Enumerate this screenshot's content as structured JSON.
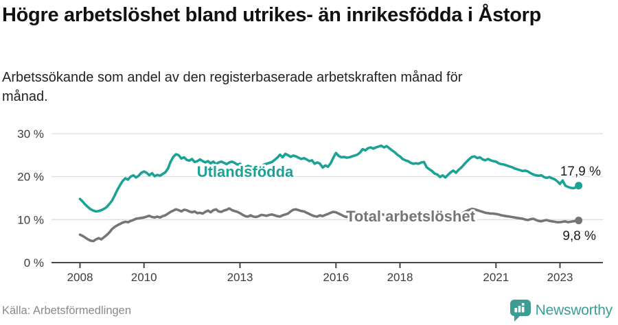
{
  "header": {
    "title": "Högre arbetslöshet bland utrikes- än inrikesfödda i Åstorp",
    "subtitle": "Arbetssökande som andel av den registerbaserade arbetskraften månad för månad."
  },
  "footer": {
    "source": "Källa: Arbetsförmedlingen",
    "brand": "Newsworthy"
  },
  "colors": {
    "series_foreign_born": "#1AA296",
    "series_total": "#757575",
    "axis": "#454545",
    "grid": "#DDDDDD",
    "tick_text": "#3C3C3C",
    "value_text": "#1A1A1A",
    "brand_teal": "#3D9C94"
  },
  "chart_data": {
    "type": "line",
    "title": "Högre arbetslöshet bland utrikes- än inrikesfödda i Åstorp",
    "subtitle": "Arbetssökande som andel av den registerbaserade arbetskraften månad för månad.",
    "x_unit": "month",
    "x_start": "2008-01",
    "x_end": "2023-08",
    "x_ticks": [
      2008,
      2010,
      2013,
      2016,
      2018,
      2021,
      2023
    ],
    "x_tick_labels": [
      "2008",
      "2010",
      "2013",
      "2016",
      "2018",
      "2021",
      "2023"
    ],
    "y_ticks": [
      0,
      10,
      20,
      30
    ],
    "y_tick_labels": [
      "0 %",
      "10 %",
      "20 %",
      "30 %"
    ],
    "ylim": [
      0,
      31
    ],
    "grid": "horizontal",
    "legend_position": "inline-labels",
    "series": [
      {
        "name": "Utlandsfödda",
        "color": "#1AA296",
        "end_value": 17.9,
        "end_value_label": "17,9 %",
        "values": [
          14.8,
          14.2,
          13.5,
          12.9,
          12.4,
          12.1,
          11.9,
          12.0,
          12.2,
          12.5,
          12.9,
          13.6,
          14.4,
          15.6,
          16.9,
          18.0,
          19.0,
          19.6,
          19.3,
          20.0,
          20.3,
          19.8,
          20.2,
          20.9,
          21.2,
          20.9,
          20.3,
          20.8,
          20.1,
          20.4,
          20.2,
          20.6,
          21.0,
          21.9,
          23.5,
          24.6,
          25.2,
          25.0,
          24.2,
          24.5,
          23.9,
          23.7,
          24.1,
          23.4,
          23.6,
          24.0,
          23.6,
          23.3,
          23.6,
          23.1,
          23.5,
          22.9,
          23.3,
          23.5,
          23.2,
          22.9,
          23.3,
          23.5,
          23.2,
          22.8,
          23.0,
          22.5,
          22.2,
          22.5,
          22.3,
          22.1,
          22.4,
          22.2,
          22.5,
          22.8,
          23.0,
          23.2,
          23.4,
          23.9,
          24.4,
          25.1,
          24.5,
          25.3,
          25.0,
          24.6,
          24.9,
          24.7,
          24.4,
          24.1,
          24.3,
          24.0,
          23.6,
          23.8,
          23.0,
          23.3,
          23.0,
          22.1,
          22.6,
          22.3,
          23.1,
          24.4,
          25.5,
          24.8,
          24.5,
          24.6,
          24.4,
          24.5,
          24.7,
          24.9,
          25.1,
          25.6,
          26.4,
          26.1,
          26.6,
          26.8,
          26.5,
          26.8,
          27.0,
          27.2,
          26.8,
          27.1,
          26.6,
          26.1,
          25.7,
          25.1,
          24.7,
          24.1,
          23.8,
          23.6,
          23.2,
          23.0,
          23.1,
          23.0,
          23.3,
          23.4,
          22.2,
          21.7,
          21.3,
          20.7,
          20.5,
          19.9,
          20.3,
          19.8,
          20.4,
          21.0,
          21.4,
          20.9,
          21.6,
          22.1,
          22.8,
          23.5,
          24.1,
          24.6,
          24.7,
          24.3,
          24.5,
          24.0,
          23.8,
          24.1,
          23.8,
          23.6,
          23.5,
          23.1,
          22.9,
          22.8,
          22.6,
          22.4,
          22.2,
          21.9,
          21.7,
          21.5,
          21.3,
          21.4,
          21.2,
          20.8,
          20.5,
          20.3,
          20.2,
          20.3,
          19.9,
          19.7,
          19.9,
          19.6,
          19.4,
          18.9,
          18.3,
          19.1,
          17.9,
          17.6,
          17.4,
          17.3,
          17.5,
          17.9
        ]
      },
      {
        "name": "Total arbetslöshet",
        "color": "#757575",
        "end_value": 9.8,
        "end_value_label": "9,8 %",
        "values": [
          6.5,
          6.2,
          5.8,
          5.4,
          5.1,
          5.0,
          5.4,
          5.7,
          5.4,
          5.9,
          6.4,
          7.0,
          7.8,
          8.3,
          8.7,
          9.0,
          9.3,
          9.5,
          9.4,
          9.7,
          9.9,
          10.2,
          10.3,
          10.4,
          10.5,
          10.7,
          10.9,
          10.6,
          10.5,
          10.7,
          10.5,
          10.8,
          11.0,
          11.4,
          11.8,
          12.1,
          12.4,
          12.2,
          11.9,
          12.3,
          12.2,
          11.9,
          11.7,
          11.9,
          11.5,
          11.6,
          11.4,
          11.8,
          12.1,
          11.7,
          12.2,
          12.4,
          11.9,
          11.8,
          12.1,
          12.3,
          12.6,
          12.2,
          12.0,
          11.8,
          11.5,
          11.1,
          10.8,
          10.7,
          11.0,
          10.7,
          10.6,
          10.8,
          11.1,
          11.0,
          10.9,
          11.1,
          11.2,
          11.0,
          10.8,
          10.7,
          11.0,
          11.2,
          11.4,
          11.9,
          12.3,
          12.4,
          12.2,
          12.0,
          11.9,
          11.6,
          11.3,
          11.0,
          10.8,
          10.7,
          11.0,
          10.8,
          11.1,
          11.3,
          11.6,
          11.8,
          11.7,
          11.4,
          11.1,
          10.8,
          10.6,
          10.8,
          11.0,
          11.2,
          11.1,
          11.3,
          11.4,
          11.5,
          11.4,
          11.3,
          11.1,
          11.2,
          11.4,
          11.3,
          11.1,
          11.2,
          11.0,
          11.1,
          10.9,
          11.0,
          11.1,
          11.0,
          10.8,
          10.7,
          10.8,
          10.7,
          10.8,
          10.9,
          10.8,
          10.7,
          10.6,
          10.7,
          10.6,
          10.5,
          10.4,
          10.5,
          10.4,
          10.5,
          10.7,
          10.6,
          10.7,
          10.8,
          11.0,
          11.3,
          11.7,
          12.0,
          12.3,
          12.5,
          12.4,
          12.2,
          12.0,
          11.8,
          11.6,
          11.5,
          11.4,
          11.4,
          11.3,
          11.2,
          11.0,
          10.9,
          10.8,
          10.7,
          10.6,
          10.5,
          10.4,
          10.3,
          10.2,
          10.0,
          9.9,
          10.1,
          10.2,
          9.9,
          9.7,
          9.6,
          9.8,
          9.9,
          9.7,
          9.6,
          9.5,
          9.4,
          9.4,
          9.5,
          9.6,
          9.4,
          9.5,
          9.6,
          9.7,
          9.8
        ]
      }
    ]
  }
}
